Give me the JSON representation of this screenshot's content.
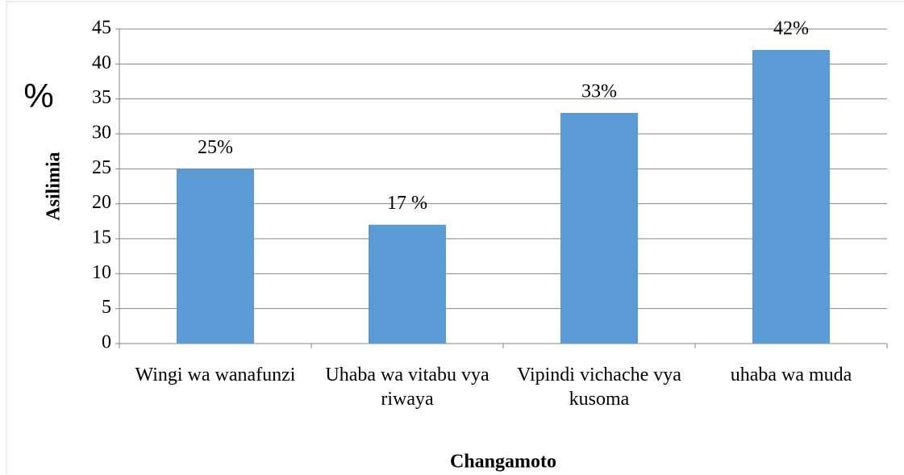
{
  "chart_data": {
    "type": "bar",
    "x_label": "Changamoto",
    "y_label": "Asilimia",
    "annotation": "%",
    "categories": [
      "Wingi wa wanafunzi",
      "Uhaba wa vitabu vya riwaya",
      "Vipindi vichache vya kusoma",
      "uhaba wa muda"
    ],
    "values": [
      25,
      17,
      33,
      42
    ],
    "value_labels": [
      "25%",
      "17 %",
      "33%",
      "42%"
    ],
    "color": "#5b9bd5",
    "ylim": [
      0,
      45
    ],
    "yticks": [
      0,
      5,
      10,
      15,
      20,
      25,
      30,
      35,
      40,
      45
    ],
    "grid": true
  }
}
